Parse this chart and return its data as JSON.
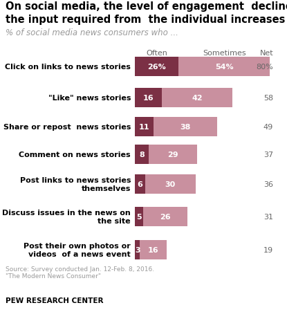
{
  "title_line1": "On social media, the level of engagement  declines as",
  "title_line2": "the input required from  the individual increases",
  "subtitle": "% of social media news consumers who ...",
  "categories": [
    "Click on links to news stories",
    "\"Like\" news stories",
    "Share or repost  news stories",
    "Comment on news stories",
    "Post links to news stories\nthemselves",
    "Discuss issues in the news on\nthe site",
    "Post their own photos or\nvideos  of a news event"
  ],
  "often": [
    26,
    16,
    11,
    8,
    6,
    5,
    3
  ],
  "sometimes": [
    54,
    42,
    38,
    29,
    30,
    26,
    16
  ],
  "net": [
    "80%",
    "58",
    "49",
    "37",
    "36",
    "31",
    "19"
  ],
  "color_often": "#7b3045",
  "color_sometimes": "#c9909f",
  "source_text": "Source: Survey conducted Jan. 12-Feb. 8, 2016.\n\"The Modern News Consumer\"",
  "footer": "PEW RESEARCH CENTER",
  "col_header_often": "Often",
  "col_header_sometimes": "Sometimes",
  "col_header_net": "Net"
}
